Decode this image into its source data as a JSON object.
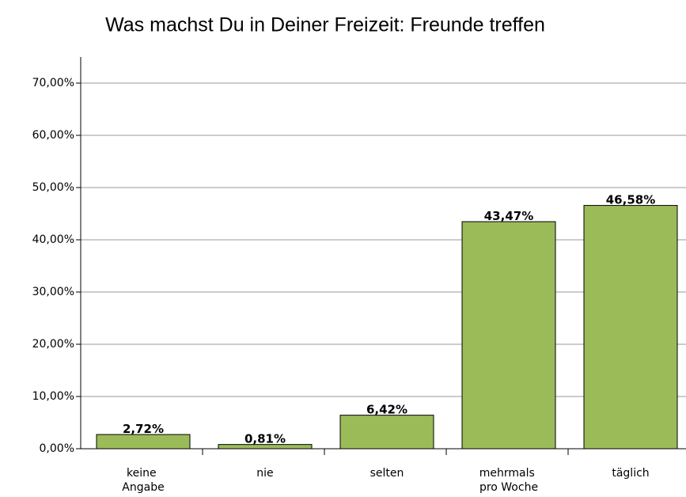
{
  "chart_data": {
    "type": "bar",
    "title": "Was machst Du in Deiner Freizeit: Freunde treffen",
    "categories": [
      "keine Angabe",
      "nie",
      "selten",
      "mehrmals pro Woche",
      "täglich"
    ],
    "values": [
      2.72,
      0.81,
      6.42,
      43.47,
      46.58
    ],
    "value_labels": [
      "2,72%",
      "0,81%",
      "6,42%",
      "43,47%",
      "46,58%"
    ],
    "color": "#9bbb59",
    "ylim": [
      0,
      75
    ],
    "yticks": [
      {
        "value": 0,
        "label": "0,00%"
      },
      {
        "value": 10,
        "label": "10,00%"
      },
      {
        "value": 20,
        "label": "20,00%"
      },
      {
        "value": 30,
        "label": "30,00%"
      },
      {
        "value": 40,
        "label": "40,00%"
      },
      {
        "value": 50,
        "label": "50,00%"
      },
      {
        "value": 60,
        "label": "60,00%"
      },
      {
        "value": 70,
        "label": "70,00%"
      }
    ],
    "grid": true
  }
}
